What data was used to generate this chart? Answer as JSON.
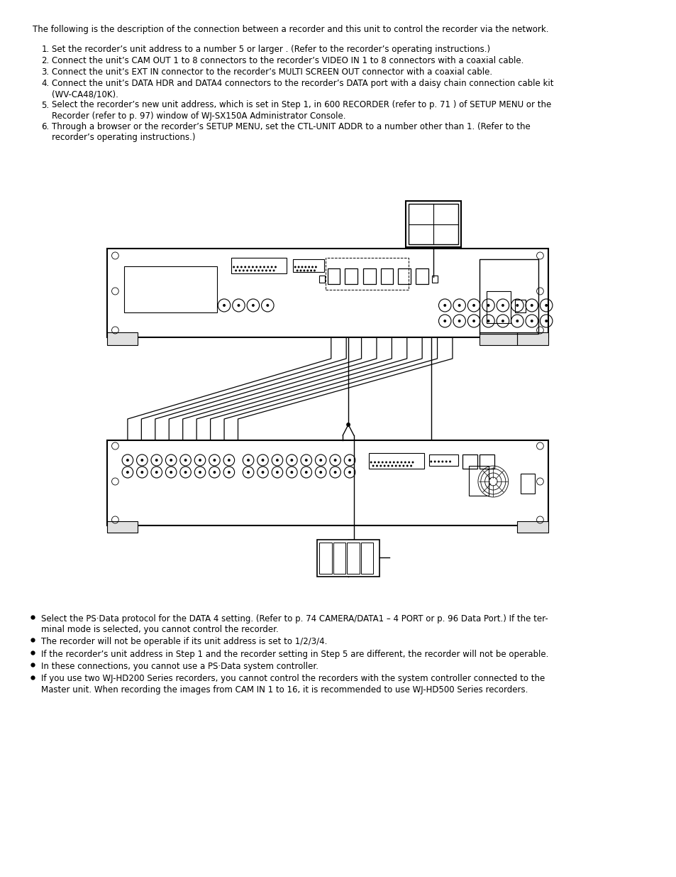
{
  "bg_color": "#ffffff",
  "text_color": "#000000",
  "intro_text": "The following is the description of the connection between a recorder and this unit to control the recorder via the network.",
  "numbered_texts": [
    "Set the recorder’s unit address to a number 5 or larger . (Refer to the recorder’s operating instructions.)",
    "Connect the unit’s CAM OUT 1 to 8 connectors to the recorder’s VIDEO IN 1 to 8 connectors with a coaxial cable.",
    "Connect the unit’s EXT IN connector to the recorder’s MULTI SCREEN OUT connector with a coaxial cable.",
    "Connect the unit’s DATA HDR and DATA4 connectors to the recorder’s DATA port with a daisy chain connection cable kit\n(WV-CA48/10K).",
    "Select the recorder’s new unit address, which is set in Step 1, in 600 RECORDER (refer to p. 71 ) of SETUP MENU or the\nRecorder (refer to p. 97) window of WJ-SX150A Administrator Console.",
    "Through a browser or the recorder’s SETUP MENU, set the CTL-UNIT ADDR to a number other than 1. (Refer to the\nrecorder’s operating instructions.)"
  ],
  "bullet_texts": [
    "Select the PS·Data protocol for the DATA 4 setting. (Refer to p. 74 CAMERA/DATA1 – 4 PORT or p. 96 Data Port.) If the ter-\nminal mode is selected, you cannot control the recorder.",
    "The recorder will not be operable if its unit address is set to 1/2/3/4.",
    "If the recorder’s unit address in Step 1 and the recorder setting in Step 5 are different, the recorder will not be operable.",
    "In these connections, you cannot use a PS·Data system controller.",
    "If you use two WJ-HD200 Series recorders, you cannot control the recorders with the system controller connected to the\nMaster unit. When recording the images from CAM IN 1 to 16, it is recommended to use WJ-HD500 Series recorders."
  ],
  "font_size": 8.5
}
